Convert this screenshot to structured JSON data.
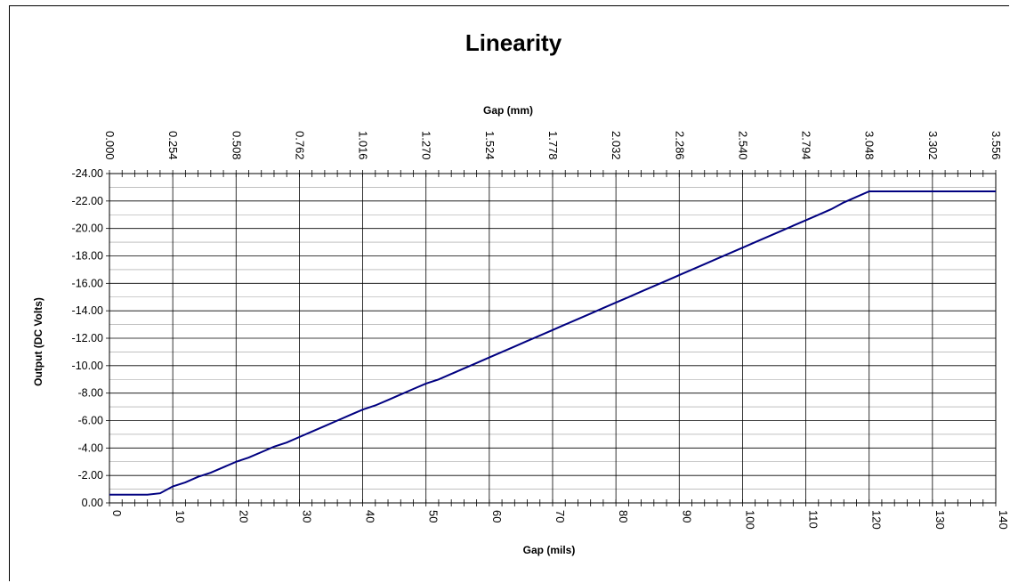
{
  "chart_data": {
    "type": "line",
    "title": "Linearity",
    "xlabel": "Gap (mils)",
    "x2label": "Gap (mm)",
    "ylabel": "Output (DC Volts)",
    "xlim": [
      0,
      140
    ],
    "ylim": [
      0,
      -24
    ],
    "x_ticks": [
      0,
      10,
      20,
      30,
      40,
      50,
      60,
      70,
      80,
      90,
      100,
      110,
      120,
      130,
      140
    ],
    "x_tick_labels": [
      "0",
      "10",
      "20",
      "30",
      "40",
      "50",
      "60",
      "70",
      "80",
      "90",
      "100",
      "110",
      "120",
      "130",
      "140"
    ],
    "x2_tick_labels": [
      "0.000",
      "0.254",
      "0.508",
      "0.762",
      "1.016",
      "1.270",
      "1.524",
      "1.778",
      "2.032",
      "2.286",
      "2.540",
      "2.794",
      "3.048",
      "3.302",
      "3.556"
    ],
    "y_ticks": [
      0,
      -2,
      -4,
      -6,
      -8,
      -10,
      -12,
      -14,
      -16,
      -18,
      -20,
      -22,
      -24
    ],
    "y_tick_labels": [
      "0.00",
      "-2.00",
      "-4.00",
      "-6.00",
      "-8.00",
      "-10.00",
      "-12.00",
      "-14.00",
      "-16.00",
      "-18.00",
      "-20.00",
      "-22.00",
      "-24.00"
    ],
    "grid": true,
    "line_color": "#000080",
    "series": [
      {
        "x": [
          0,
          2,
          4,
          6,
          8,
          10,
          12,
          14,
          16,
          18,
          20,
          22,
          24,
          26,
          28,
          30,
          32,
          34,
          36,
          38,
          40,
          42,
          44,
          46,
          48,
          50,
          52,
          54,
          56,
          58,
          60,
          62,
          64,
          66,
          68,
          70,
          72,
          74,
          76,
          78,
          80,
          82,
          84,
          86,
          88,
          90,
          92,
          94,
          96,
          98,
          100,
          102,
          104,
          106,
          108,
          110,
          112,
          114,
          116,
          118,
          120,
          122,
          124,
          126,
          128,
          130,
          132,
          134,
          136,
          138,
          140
        ],
        "values": [
          -0.6,
          -0.6,
          -0.6,
          -0.6,
          -0.7,
          -1.2,
          -1.5,
          -1.9,
          -2.2,
          -2.6,
          -3.0,
          -3.3,
          -3.7,
          -4.1,
          -4.4,
          -4.8,
          -5.2,
          -5.6,
          -6.0,
          -6.4,
          -6.8,
          -7.1,
          -7.5,
          -7.9,
          -8.3,
          -8.7,
          -9.0,
          -9.4,
          -9.8,
          -10.2,
          -10.6,
          -11.0,
          -11.4,
          -11.8,
          -12.2,
          -12.6,
          -13.0,
          -13.4,
          -13.8,
          -14.2,
          -14.6,
          -15.0,
          -15.4,
          -15.8,
          -16.2,
          -16.6,
          -17.0,
          -17.4,
          -17.8,
          -18.2,
          -18.6,
          -19.0,
          -19.4,
          -19.8,
          -20.2,
          -20.6,
          -21.0,
          -21.4,
          -21.9,
          -22.3,
          -22.7,
          -22.7,
          -22.7,
          -22.7,
          -22.7,
          -22.7,
          -22.7,
          -22.7,
          -22.7,
          -22.7,
          -22.7
        ]
      }
    ]
  }
}
